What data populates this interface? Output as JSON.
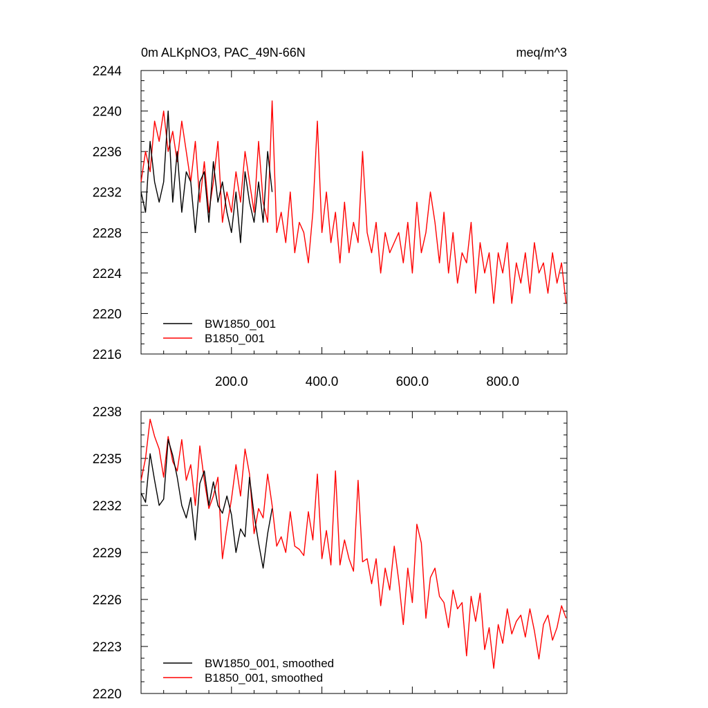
{
  "chart_data": [
    {
      "type": "line",
      "title_left": "0m ALKpNO3, PAC_49N-66N",
      "title_right": "meq/m^3",
      "xlabel": "",
      "ylabel": "",
      "xlim": [
        0,
        942
      ],
      "ylim": [
        2216,
        2244
      ],
      "yticks": [
        2216,
        2220,
        2224,
        2228,
        2232,
        2236,
        2240,
        2244
      ],
      "xticks": [
        200,
        400,
        600,
        800
      ],
      "xtick_labels": [
        "200.0",
        "400.0",
        "600.0",
        "800.0"
      ],
      "grid": false,
      "legend_position": "bottom-left",
      "series": [
        {
          "name": "BW1850_001",
          "color": "#000000",
          "x": [
            0,
            10,
            20,
            30,
            40,
            50,
            60,
            70,
            80,
            90,
            100,
            110,
            120,
            130,
            140,
            150,
            160,
            170,
            180,
            190,
            200,
            210,
            220,
            230,
            240,
            250,
            260,
            270,
            280,
            290
          ],
          "values": [
            2232,
            2230,
            2237,
            2233,
            2231,
            2233,
            2240,
            2231,
            2236,
            2230,
            2234,
            2233,
            2228,
            2233,
            2234,
            2229,
            2235,
            2231,
            2233,
            2230,
            2228,
            2232,
            2227,
            2234,
            2231,
            2229,
            2233,
            2229,
            2236,
            2232
          ]
        },
        {
          "name": "B1850_001",
          "color": "#ff0000",
          "x": [
            0,
            10,
            20,
            30,
            40,
            50,
            60,
            70,
            80,
            90,
            100,
            110,
            120,
            130,
            140,
            150,
            160,
            170,
            180,
            190,
            200,
            210,
            220,
            230,
            240,
            250,
            260,
            270,
            280,
            290,
            300,
            310,
            320,
            330,
            340,
            350,
            360,
            370,
            380,
            390,
            400,
            410,
            420,
            430,
            440,
            450,
            460,
            470,
            480,
            490,
            500,
            510,
            520,
            530,
            540,
            550,
            560,
            570,
            580,
            590,
            600,
            610,
            620,
            630,
            640,
            650,
            660,
            670,
            680,
            690,
            700,
            710,
            720,
            730,
            740,
            750,
            760,
            770,
            780,
            790,
            800,
            810,
            820,
            830,
            840,
            850,
            860,
            870,
            880,
            890,
            900,
            910,
            920,
            930,
            940
          ],
          "values": [
            2233,
            2236,
            2234,
            2239,
            2237,
            2240,
            2236,
            2238,
            2235,
            2239,
            2236,
            2233,
            2237,
            2231,
            2235,
            2230,
            2233,
            2237,
            2229,
            2232,
            2230,
            2234,
            2231,
            2236,
            2233,
            2230,
            2237,
            2231,
            2229,
            2241,
            2228,
            2230,
            2227,
            2232,
            2226,
            2229,
            2228,
            2225,
            2230,
            2239,
            2228,
            2232,
            2227,
            2230,
            2225,
            2231,
            2226,
            2229,
            2227,
            2236,
            2228,
            2226,
            2229,
            2224,
            2228,
            2226,
            2227,
            2228,
            2225,
            2229,
            2224,
            2231,
            2226,
            2228,
            2232,
            2229,
            2225,
            2230,
            2224,
            2228,
            2223,
            2226,
            2225,
            2229,
            2222,
            2227,
            2224,
            2226,
            2221,
            2226,
            2224,
            2227,
            2221,
            2225,
            2223,
            2226,
            2222,
            2227,
            2224,
            2225,
            2222,
            2226,
            2223,
            2225,
            2221
          ]
        }
      ]
    },
    {
      "type": "line",
      "xlabel": "",
      "ylabel": "",
      "xlim": [
        0,
        942
      ],
      "ylim": [
        2220,
        2238
      ],
      "yticks": [
        2220,
        2223,
        2226,
        2229,
        2232,
        2235,
        2238
      ],
      "xticks": [
        200,
        400,
        600,
        800
      ],
      "grid": false,
      "legend_position": "bottom-left",
      "series": [
        {
          "name": "BW1850_001, smoothed",
          "color": "#000000",
          "x": [
            0,
            10,
            20,
            30,
            40,
            50,
            60,
            70,
            80,
            90,
            100,
            110,
            120,
            130,
            140,
            150,
            160,
            170,
            180,
            190,
            200,
            210,
            220,
            230,
            240,
            250,
            260,
            270,
            280,
            290
          ],
          "values": [
            2232.8,
            2232.2,
            2235.3,
            2233.6,
            2232.0,
            2232.4,
            2236.2,
            2235.2,
            2233.8,
            2232.0,
            2231.2,
            2232.5,
            2229.8,
            2233.4,
            2234.2,
            2232.0,
            2233.5,
            2232.0,
            2231.5,
            2232.6,
            2231.4,
            2229.0,
            2230.5,
            2230.0,
            2233.8,
            2231.4,
            2229.6,
            2228.0,
            2230.2,
            2231.8
          ]
        },
        {
          "name": "B1850_001, smoothed",
          "color": "#ff0000",
          "x": [
            0,
            10,
            20,
            30,
            40,
            50,
            60,
            70,
            80,
            90,
            100,
            110,
            120,
            130,
            140,
            150,
            160,
            170,
            180,
            190,
            200,
            210,
            220,
            230,
            240,
            250,
            260,
            270,
            280,
            290,
            300,
            310,
            320,
            330,
            340,
            350,
            360,
            370,
            380,
            390,
            400,
            410,
            420,
            430,
            440,
            450,
            460,
            470,
            480,
            490,
            500,
            510,
            520,
            530,
            540,
            550,
            560,
            570,
            580,
            590,
            600,
            610,
            620,
            630,
            640,
            650,
            660,
            670,
            680,
            690,
            700,
            710,
            720,
            730,
            740,
            750,
            760,
            770,
            780,
            790,
            800,
            810,
            820,
            830,
            840,
            850,
            860,
            870,
            880,
            890,
            900,
            910,
            920,
            930,
            940
          ],
          "values": [
            2233.6,
            2235.0,
            2237.5,
            2236.4,
            2235.6,
            2233.8,
            2236.4,
            2234.8,
            2234.2,
            2236.2,
            2233.6,
            2234.6,
            2232.0,
            2235.8,
            2233.6,
            2231.8,
            2232.6,
            2233.8,
            2228.6,
            2230.6,
            2232.4,
            2234.6,
            2232.6,
            2235.6,
            2234.0,
            2230.2,
            2231.8,
            2231.2,
            2234.0,
            2232.0,
            2229.4,
            2230.0,
            2229.0,
            2231.6,
            2229.4,
            2229.2,
            2228.8,
            2231.6,
            2229.8,
            2234.0,
            2228.6,
            2230.4,
            2228.2,
            2234.2,
            2228.2,
            2229.8,
            2228.6,
            2227.8,
            2233.6,
            2228.4,
            2228.6,
            2227.0,
            2228.6,
            2225.6,
            2228.0,
            2226.6,
            2229.4,
            2227.2,
            2224.4,
            2228.0,
            2225.8,
            2230.8,
            2229.6,
            2224.8,
            2227.4,
            2228.0,
            2226.2,
            2225.8,
            2224.2,
            2226.6,
            2225.4,
            2225.8,
            2222.4,
            2226.2,
            2224.6,
            2226.4,
            2222.8,
            2224.2,
            2221.6,
            2224.4,
            2223.2,
            2225.4,
            2223.8,
            2224.6,
            2225.0,
            2223.6,
            2225.4,
            2224.0,
            2222.2,
            2224.4,
            2225.0,
            2223.4,
            2224.2,
            2225.6,
            2224.8
          ]
        }
      ]
    }
  ]
}
